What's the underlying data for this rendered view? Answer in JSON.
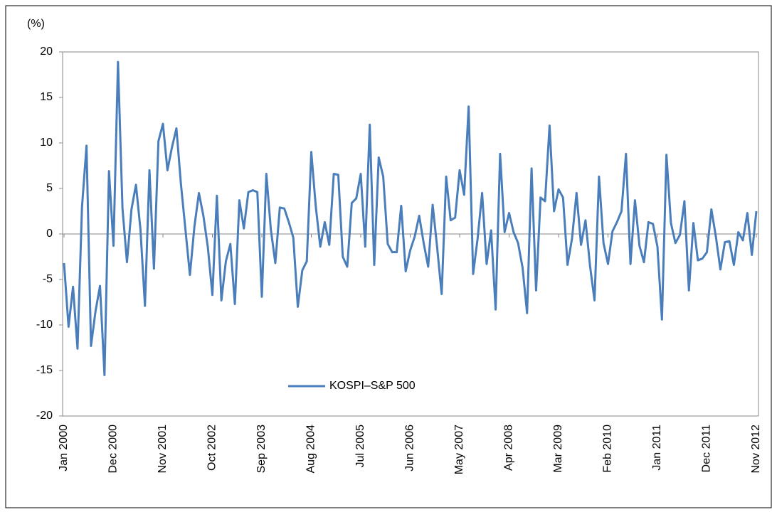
{
  "chart_data": {
    "type": "line",
    "y_label": "(%)",
    "categories": [
      "Jan 2000",
      null,
      null,
      null,
      null,
      null,
      null,
      null,
      null,
      null,
      null,
      "Dec 2000",
      null,
      null,
      null,
      null,
      null,
      null,
      null,
      null,
      null,
      null,
      "Nov 2001",
      null,
      null,
      null,
      null,
      null,
      null,
      null,
      null,
      null,
      null,
      "Oct 2002",
      null,
      null,
      null,
      null,
      null,
      null,
      null,
      null,
      null,
      null,
      "Sep 2003",
      null,
      null,
      null,
      null,
      null,
      null,
      null,
      null,
      null,
      null,
      "Aug 2004",
      null,
      null,
      null,
      null,
      null,
      null,
      null,
      null,
      null,
      null,
      "Jul 2005",
      null,
      null,
      null,
      null,
      null,
      null,
      null,
      null,
      null,
      null,
      "Jun 2006",
      null,
      null,
      null,
      null,
      null,
      null,
      null,
      null,
      null,
      null,
      "May 2007",
      null,
      null,
      null,
      null,
      null,
      null,
      null,
      null,
      null,
      null,
      "Apr 2008",
      null,
      null,
      null,
      null,
      null,
      null,
      null,
      null,
      null,
      null,
      "Mar 2009",
      null,
      null,
      null,
      null,
      null,
      null,
      null,
      null,
      null,
      null,
      "Feb 2010",
      null,
      null,
      null,
      null,
      null,
      null,
      null,
      null,
      null,
      null,
      "Jan 2011",
      null,
      null,
      null,
      null,
      null,
      null,
      null,
      null,
      null,
      null,
      "Dec 2011",
      null,
      null,
      null,
      null,
      null,
      null,
      null,
      null,
      null,
      null,
      "Nov 2012"
    ],
    "series": [
      {
        "name": "KOSPI–S&P 500",
        "color": "#4a7ebb",
        "values": [
          -3.2,
          -10.2,
          -5.8,
          -12.6,
          3,
          9.7,
          -12.3,
          -8.5,
          -5.7,
          -15.5,
          6.9,
          -1.3,
          18.9,
          2.8,
          -3.1,
          2.7,
          5.4,
          0.5,
          -7.9,
          7.0,
          -3.8,
          10.2,
          12.1,
          7.0,
          9.5,
          11.6,
          5.5,
          0.5,
          -4.5,
          0.8,
          4.5,
          2,
          -1.5,
          -6.7,
          4.2,
          -7.3,
          -3,
          -1.1,
          -7.7,
          3.7,
          0.6,
          4.6,
          4.8,
          4.6,
          -6.9,
          6.6,
          0.5,
          -3.2,
          2.9,
          2.8,
          1.3,
          -0.4,
          -8.0,
          -4.0,
          -3.0,
          9.0,
          3,
          -1.4,
          1.3,
          -1.2,
          6.6,
          6.5,
          -2.5,
          -3.6,
          3.4,
          3.9,
          6.6,
          -1.4,
          12,
          -3.4,
          8.4,
          6.3,
          -1.1,
          -2.0,
          -2.0,
          3.1,
          -4.1,
          -1.8,
          -0.3,
          2.0,
          -1,
          -3.6,
          3.2,
          -1.5,
          -6.6,
          6.3,
          1.5,
          1.8,
          7.0,
          4.3,
          14,
          -4.4,
          -0.5,
          4.5,
          -3.3,
          0.4,
          -8.3,
          8.8,
          0.2,
          2.3,
          0.2,
          -1,
          -3.7,
          -8.7,
          7.2,
          -6.2,
          4.0,
          3.6,
          11.9,
          2.5,
          4.9,
          4.0,
          -3.4,
          -0.5,
          4.5,
          -1.2,
          1.5,
          -3.5,
          -7.3,
          6.3,
          -1,
          -3.3,
          0.3,
          1.3,
          2.5,
          8.8,
          -3.3,
          3.7,
          -1.3,
          -3.1,
          1.3,
          1.1,
          -1.4,
          -9.4,
          8.7,
          1.2,
          -1.0,
          -0.1,
          3.6,
          -6.2,
          1.2,
          -2.9,
          -2.7,
          -2.0,
          2.7,
          -0.3,
          -3.9,
          -0.9,
          -0.8,
          -3.4,
          0.2,
          -0.7,
          2.3,
          -2.3,
          2.5
        ]
      }
    ],
    "ylim": [
      -20,
      20
    ],
    "yticks": [
      -20,
      -15,
      -10,
      -5,
      0,
      5,
      10,
      15,
      20
    ],
    "grid": false,
    "legend": "center"
  }
}
